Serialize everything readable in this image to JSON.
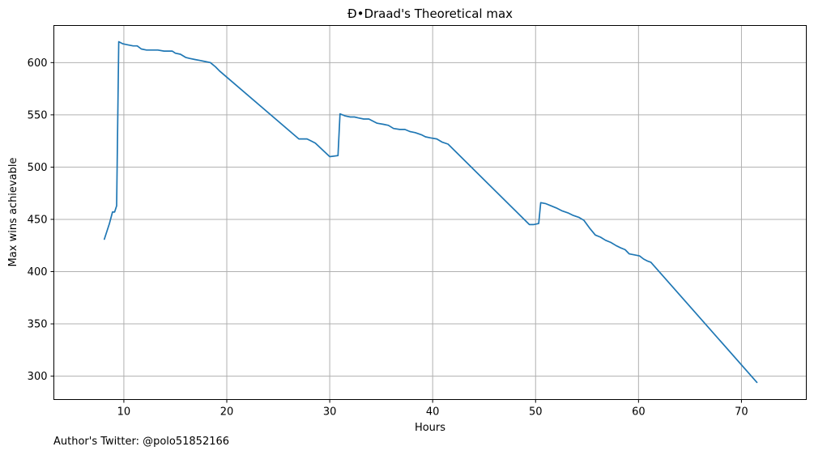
{
  "chart_data": {
    "type": "line",
    "title": "Ð•Draad's Theoretical max",
    "xlabel": "Hours",
    "ylabel": "Max wins achievable",
    "xlim": [
      3.2,
      76.3
    ],
    "ylim": [
      277.6,
      635.5
    ],
    "xticks": [
      10,
      20,
      30,
      40,
      50,
      60,
      70
    ],
    "yticks": [
      300,
      350,
      400,
      450,
      500,
      550,
      600
    ],
    "grid": true,
    "line_color": "#1f77b4",
    "series": [
      {
        "x": [
          8.1,
          8.6,
          8.9,
          9.1,
          9.3,
          9.5,
          9.9,
          10.4,
          10.9,
          11.3,
          11.7,
          12.2,
          12.8,
          13.3,
          13.9,
          14.3,
          14.7,
          15.0,
          15.5,
          16.0,
          16.4,
          16.9,
          17.4,
          17.9,
          18.4,
          18.9,
          19.3,
          27.0,
          27.5,
          27.8,
          28.2,
          28.6,
          30.0,
          30.8,
          31.0,
          31.5,
          32.0,
          32.4,
          32.8,
          33.3,
          33.8,
          34.2,
          34.6,
          35.2,
          35.7,
          36.2,
          36.8,
          37.3,
          37.8,
          38.3,
          38.9,
          39.3,
          39.8,
          40.4,
          40.9,
          41.5,
          49.4,
          49.8,
          50.3,
          50.5,
          51.0,
          51.5,
          52.0,
          52.6,
          53.2,
          53.6,
          54.2,
          54.7,
          55.3,
          55.8,
          56.3,
          56.8,
          57.3,
          57.8,
          58.2,
          58.7,
          59.1,
          59.6,
          60.1,
          60.5,
          60.9,
          61.2,
          71.5
        ],
        "y": [
          431,
          446,
          457,
          457,
          463,
          620,
          618,
          617,
          616,
          616,
          613,
          612,
          612,
          612,
          611,
          611,
          611,
          609,
          608,
          605,
          604,
          603,
          602,
          601,
          600,
          596,
          592,
          527,
          527,
          527,
          525,
          523,
          510,
          511,
          551,
          549,
          548,
          548,
          547,
          546,
          546,
          544,
          542,
          541,
          540,
          537,
          536,
          536,
          534,
          533,
          531,
          529,
          528,
          527,
          524,
          522,
          445,
          445,
          446,
          466,
          465,
          463,
          461,
          458,
          456,
          454,
          452,
          449,
          441,
          435,
          433,
          430,
          428,
          425,
          423,
          421,
          417,
          416,
          415,
          412,
          410,
          409,
          294
        ]
      }
    ]
  },
  "footer": {
    "author_note": "Author's Twitter: @polo51852166"
  }
}
